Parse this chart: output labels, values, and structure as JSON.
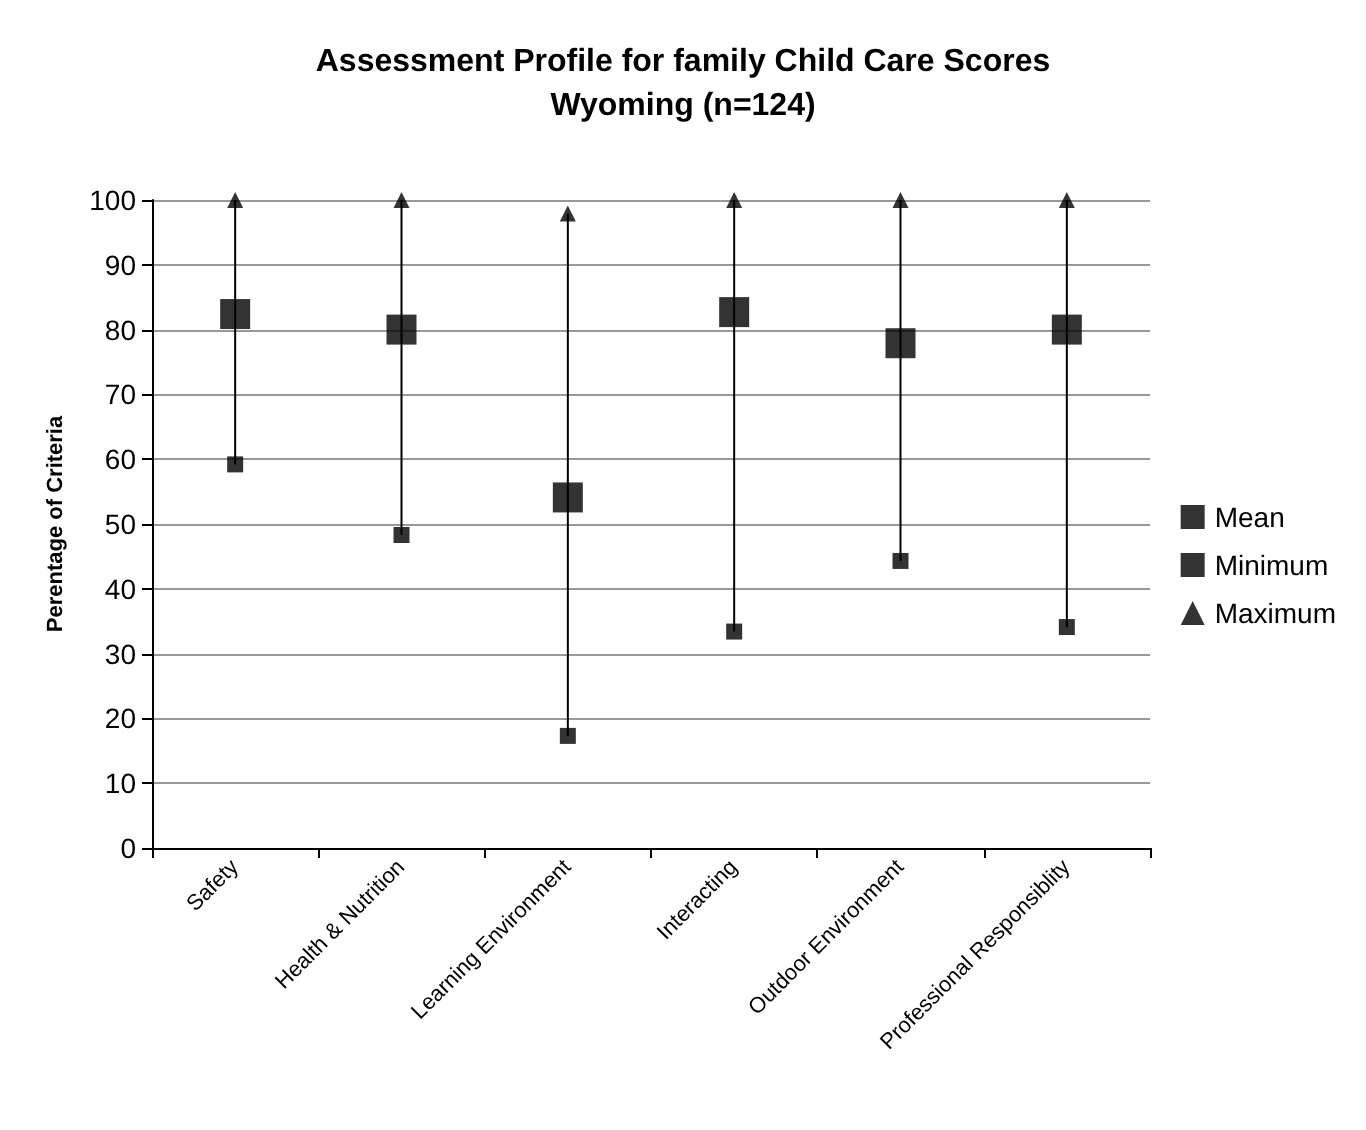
{
  "chart_data": {
    "type": "scatter",
    "title": "Assessment Profile for family Child Care Scores",
    "subtitle": "Wyoming (n=124)",
    "ylabel": "Perentage of Criteria",
    "categories": [
      "Safety",
      "Health & Nutrition",
      "Learning Environment",
      "Interacting",
      "Outdoor Environment",
      "Professional Responsiblity"
    ],
    "series": [
      {
        "name": "Mean",
        "color": "#000000",
        "marker": "square",
        "values": [
          82.4,
          80,
          54.1,
          82.7,
          77.9,
          80
        ]
      },
      {
        "name": "Minimum",
        "color": "#000000",
        "marker": "square",
        "values": [
          59.2,
          48.3,
          17.3,
          33.4,
          44.3,
          34.1
        ]
      },
      {
        "name": "Maximum",
        "color": "#000000",
        "marker": "triangle",
        "values": [
          100,
          100,
          97.9,
          100,
          100,
          100
        ]
      }
    ],
    "ylim": [
      0,
      100
    ],
    "yticks": [
      0,
      10,
      20,
      30,
      40,
      50,
      60,
      70,
      80,
      90,
      100
    ],
    "grid": "y",
    "legend": "right"
  }
}
